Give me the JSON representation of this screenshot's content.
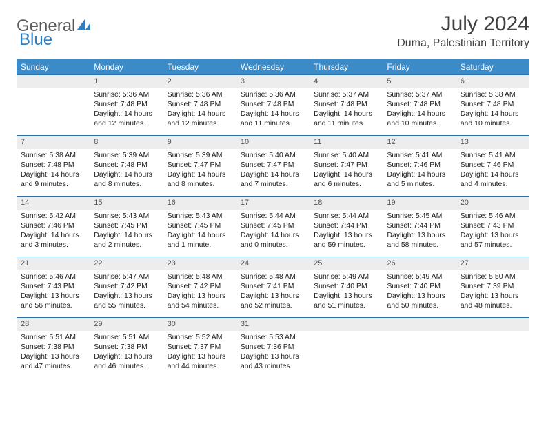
{
  "brand": {
    "general": "General",
    "blue": "Blue"
  },
  "title": "July 2024",
  "location": "Duma, Palestinian Territory",
  "style": {
    "header_bg": "#3b8bc9",
    "header_fg": "#ffffff",
    "daynum_bg": "#ededed",
    "daynum_border": "#2f6fa8",
    "text_color": "#222222",
    "title_color": "#404040",
    "logo_blue": "#2f7ec2",
    "logo_gray": "#5a5a5a",
    "font_family": "Arial, Helvetica, sans-serif",
    "title_fontsize": 30,
    "location_fontsize": 16,
    "header_fontsize": 12,
    "cell_fontsize": 10.5
  },
  "weekdays": [
    "Sunday",
    "Monday",
    "Tuesday",
    "Wednesday",
    "Thursday",
    "Friday",
    "Saturday"
  ],
  "weeks": [
    [
      null,
      {
        "n": "1",
        "sr": "Sunrise: 5:36 AM",
        "ss": "Sunset: 7:48 PM",
        "d1": "Daylight: 14 hours",
        "d2": "and 12 minutes."
      },
      {
        "n": "2",
        "sr": "Sunrise: 5:36 AM",
        "ss": "Sunset: 7:48 PM",
        "d1": "Daylight: 14 hours",
        "d2": "and 12 minutes."
      },
      {
        "n": "3",
        "sr": "Sunrise: 5:36 AM",
        "ss": "Sunset: 7:48 PM",
        "d1": "Daylight: 14 hours",
        "d2": "and 11 minutes."
      },
      {
        "n": "4",
        "sr": "Sunrise: 5:37 AM",
        "ss": "Sunset: 7:48 PM",
        "d1": "Daylight: 14 hours",
        "d2": "and 11 minutes."
      },
      {
        "n": "5",
        "sr": "Sunrise: 5:37 AM",
        "ss": "Sunset: 7:48 PM",
        "d1": "Daylight: 14 hours",
        "d2": "and 10 minutes."
      },
      {
        "n": "6",
        "sr": "Sunrise: 5:38 AM",
        "ss": "Sunset: 7:48 PM",
        "d1": "Daylight: 14 hours",
        "d2": "and 10 minutes."
      }
    ],
    [
      {
        "n": "7",
        "sr": "Sunrise: 5:38 AM",
        "ss": "Sunset: 7:48 PM",
        "d1": "Daylight: 14 hours",
        "d2": "and 9 minutes."
      },
      {
        "n": "8",
        "sr": "Sunrise: 5:39 AM",
        "ss": "Sunset: 7:48 PM",
        "d1": "Daylight: 14 hours",
        "d2": "and 8 minutes."
      },
      {
        "n": "9",
        "sr": "Sunrise: 5:39 AM",
        "ss": "Sunset: 7:47 PM",
        "d1": "Daylight: 14 hours",
        "d2": "and 8 minutes."
      },
      {
        "n": "10",
        "sr": "Sunrise: 5:40 AM",
        "ss": "Sunset: 7:47 PM",
        "d1": "Daylight: 14 hours",
        "d2": "and 7 minutes."
      },
      {
        "n": "11",
        "sr": "Sunrise: 5:40 AM",
        "ss": "Sunset: 7:47 PM",
        "d1": "Daylight: 14 hours",
        "d2": "and 6 minutes."
      },
      {
        "n": "12",
        "sr": "Sunrise: 5:41 AM",
        "ss": "Sunset: 7:46 PM",
        "d1": "Daylight: 14 hours",
        "d2": "and 5 minutes."
      },
      {
        "n": "13",
        "sr": "Sunrise: 5:41 AM",
        "ss": "Sunset: 7:46 PM",
        "d1": "Daylight: 14 hours",
        "d2": "and 4 minutes."
      }
    ],
    [
      {
        "n": "14",
        "sr": "Sunrise: 5:42 AM",
        "ss": "Sunset: 7:46 PM",
        "d1": "Daylight: 14 hours",
        "d2": "and 3 minutes."
      },
      {
        "n": "15",
        "sr": "Sunrise: 5:43 AM",
        "ss": "Sunset: 7:45 PM",
        "d1": "Daylight: 14 hours",
        "d2": "and 2 minutes."
      },
      {
        "n": "16",
        "sr": "Sunrise: 5:43 AM",
        "ss": "Sunset: 7:45 PM",
        "d1": "Daylight: 14 hours",
        "d2": "and 1 minute."
      },
      {
        "n": "17",
        "sr": "Sunrise: 5:44 AM",
        "ss": "Sunset: 7:45 PM",
        "d1": "Daylight: 14 hours",
        "d2": "and 0 minutes."
      },
      {
        "n": "18",
        "sr": "Sunrise: 5:44 AM",
        "ss": "Sunset: 7:44 PM",
        "d1": "Daylight: 13 hours",
        "d2": "and 59 minutes."
      },
      {
        "n": "19",
        "sr": "Sunrise: 5:45 AM",
        "ss": "Sunset: 7:44 PM",
        "d1": "Daylight: 13 hours",
        "d2": "and 58 minutes."
      },
      {
        "n": "20",
        "sr": "Sunrise: 5:46 AM",
        "ss": "Sunset: 7:43 PM",
        "d1": "Daylight: 13 hours",
        "d2": "and 57 minutes."
      }
    ],
    [
      {
        "n": "21",
        "sr": "Sunrise: 5:46 AM",
        "ss": "Sunset: 7:43 PM",
        "d1": "Daylight: 13 hours",
        "d2": "and 56 minutes."
      },
      {
        "n": "22",
        "sr": "Sunrise: 5:47 AM",
        "ss": "Sunset: 7:42 PM",
        "d1": "Daylight: 13 hours",
        "d2": "and 55 minutes."
      },
      {
        "n": "23",
        "sr": "Sunrise: 5:48 AM",
        "ss": "Sunset: 7:42 PM",
        "d1": "Daylight: 13 hours",
        "d2": "and 54 minutes."
      },
      {
        "n": "24",
        "sr": "Sunrise: 5:48 AM",
        "ss": "Sunset: 7:41 PM",
        "d1": "Daylight: 13 hours",
        "d2": "and 52 minutes."
      },
      {
        "n": "25",
        "sr": "Sunrise: 5:49 AM",
        "ss": "Sunset: 7:40 PM",
        "d1": "Daylight: 13 hours",
        "d2": "and 51 minutes."
      },
      {
        "n": "26",
        "sr": "Sunrise: 5:49 AM",
        "ss": "Sunset: 7:40 PM",
        "d1": "Daylight: 13 hours",
        "d2": "and 50 minutes."
      },
      {
        "n": "27",
        "sr": "Sunrise: 5:50 AM",
        "ss": "Sunset: 7:39 PM",
        "d1": "Daylight: 13 hours",
        "d2": "and 48 minutes."
      }
    ],
    [
      {
        "n": "28",
        "sr": "Sunrise: 5:51 AM",
        "ss": "Sunset: 7:38 PM",
        "d1": "Daylight: 13 hours",
        "d2": "and 47 minutes."
      },
      {
        "n": "29",
        "sr": "Sunrise: 5:51 AM",
        "ss": "Sunset: 7:38 PM",
        "d1": "Daylight: 13 hours",
        "d2": "and 46 minutes."
      },
      {
        "n": "30",
        "sr": "Sunrise: 5:52 AM",
        "ss": "Sunset: 7:37 PM",
        "d1": "Daylight: 13 hours",
        "d2": "and 44 minutes."
      },
      {
        "n": "31",
        "sr": "Sunrise: 5:53 AM",
        "ss": "Sunset: 7:36 PM",
        "d1": "Daylight: 13 hours",
        "d2": "and 43 minutes."
      },
      null,
      null,
      null
    ]
  ]
}
